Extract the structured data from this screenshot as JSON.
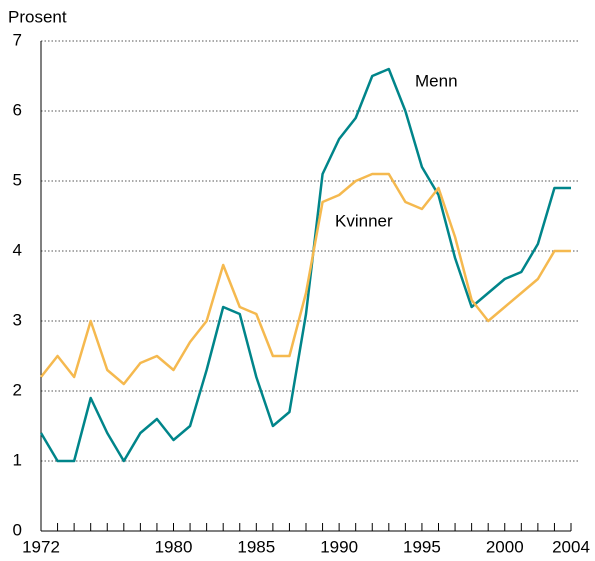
{
  "chart_data": {
    "type": "line",
    "ylabel": "Prosent",
    "x": [
      1972,
      1973,
      1974,
      1975,
      1976,
      1977,
      1978,
      1979,
      1980,
      1981,
      1982,
      1983,
      1984,
      1985,
      1986,
      1987,
      1988,
      1989,
      1990,
      1991,
      1992,
      1993,
      1994,
      1995,
      1996,
      1997,
      1998,
      1999,
      2000,
      2001,
      2002,
      2003,
      2004
    ],
    "series": [
      {
        "name": "Menn",
        "color": "#00858a",
        "values": [
          1.4,
          1.0,
          1.0,
          1.9,
          1.4,
          1.0,
          1.4,
          1.6,
          1.3,
          1.5,
          2.3,
          3.2,
          3.1,
          2.2,
          1.5,
          1.7,
          3.1,
          5.1,
          5.6,
          5.9,
          6.5,
          6.6,
          6.0,
          5.2,
          4.8,
          3.9,
          3.2,
          3.4,
          3.6,
          3.7,
          4.1,
          4.9,
          4.9
        ]
      },
      {
        "name": "Kvinner",
        "color": "#f5b94f",
        "values": [
          2.2,
          2.5,
          2.2,
          3.0,
          2.3,
          2.1,
          2.4,
          2.5,
          2.3,
          2.7,
          3.0,
          3.8,
          3.2,
          3.1,
          2.5,
          2.5,
          3.4,
          4.7,
          4.8,
          5.0,
          5.1,
          5.1,
          4.7,
          4.6,
          4.9,
          4.2,
          3.3,
          3.0,
          3.2,
          3.4,
          3.6,
          4.0,
          4.0
        ]
      }
    ],
    "xlim": [
      1972,
      2004
    ],
    "xticks": [
      1972,
      1980,
      1985,
      1990,
      1995,
      2000,
      2004
    ],
    "ylim": [
      0,
      7
    ],
    "yticks": [
      0,
      1,
      2,
      3,
      4,
      5,
      6,
      7
    ],
    "grid": true
  }
}
